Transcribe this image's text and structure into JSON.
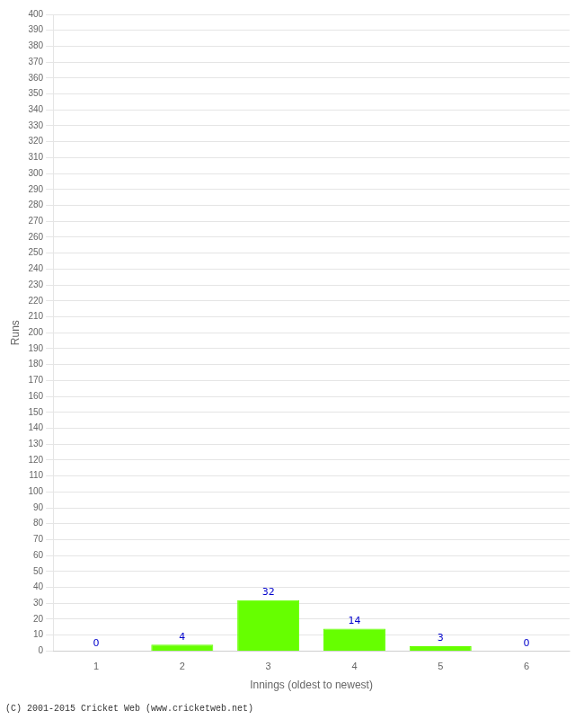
{
  "chart_data": {
    "type": "bar",
    "xlabel": "Innings (oldest to newest)",
    "ylabel": "Runs",
    "categories": [
      1,
      2,
      3,
      4,
      5,
      6
    ],
    "values": [
      0,
      4,
      32,
      14,
      3,
      0
    ],
    "color": "#66ff00",
    "ylim": [
      0,
      400
    ],
    "yticks": [
      0,
      10,
      20,
      30,
      40,
      50,
      60,
      70,
      80,
      90,
      100,
      110,
      120,
      130,
      140,
      150,
      160,
      170,
      180,
      190,
      200,
      210,
      220,
      230,
      240,
      250,
      260,
      270,
      280,
      290,
      300,
      310,
      320,
      330,
      340,
      350,
      360,
      370,
      380,
      390,
      400
    ],
    "grid": "y",
    "data_labels": true,
    "annotations": [
      "(C) 2001-2015 Cricket Web (www.cricketweb.net)"
    ]
  }
}
